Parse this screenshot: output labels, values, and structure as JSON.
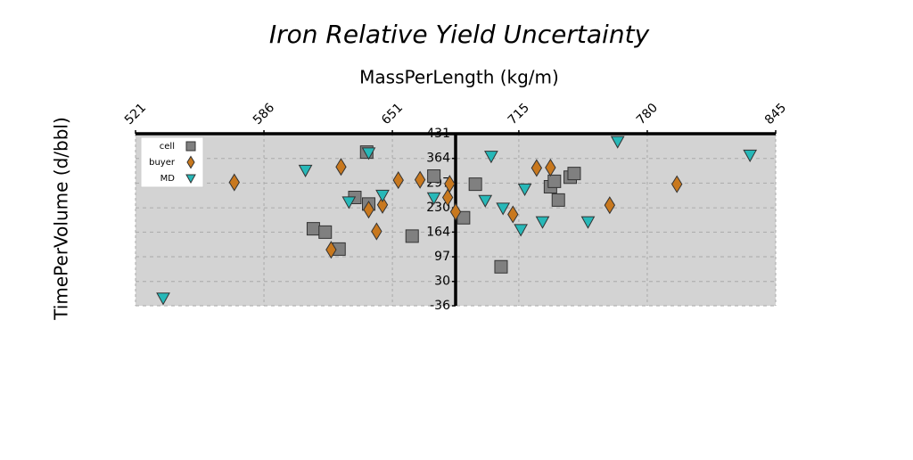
{
  "chart_data": {
    "type": "scatter",
    "title": "Iron Relative Yield Uncertainty",
    "xlabel": "MassPerLength (kg/m)",
    "ylabel": "TimePerVolume (d/bbl)",
    "xlim": [
      521,
      845
    ],
    "xticks": [
      521,
      586,
      651,
      715,
      780,
      845
    ],
    "ylim": [
      -36,
      431
    ],
    "yticks": [
      -36,
      30,
      97,
      164,
      230,
      297,
      364,
      431
    ],
    "y_axis_at": 683,
    "grid": true,
    "legend": "upper left",
    "series": [
      {
        "name": "cell",
        "color": "#808080",
        "marker": "square",
        "x": [
          638,
          672,
          632,
          639,
          611,
          617,
          624,
          661,
          687,
          693,
          706,
          731,
          733,
          741,
          743,
          735
        ],
        "values": [
          381,
          316,
          258,
          240,
          173,
          164,
          118,
          153,
          203,
          294,
          70,
          287,
          302,
          313,
          323,
          251
        ]
      },
      {
        "name": "buyer",
        "color": "#c8781e",
        "marker": "diamond",
        "x": [
          571,
          625,
          654,
          665,
          680,
          679,
          683,
          639,
          646,
          643,
          620,
          712,
          724,
          731,
          761,
          795
        ],
        "values": [
          299,
          341,
          305,
          306,
          295,
          258,
          219,
          225,
          238,
          166,
          116,
          212,
          338,
          339,
          237,
          294
        ]
      },
      {
        "name": "MD",
        "color": "#27b8b8",
        "marker": "triangle-down",
        "x": [
          535,
          607,
          639,
          629,
          646,
          672,
          701,
          698,
          707,
          718,
          716,
          727,
          750,
          765,
          832
        ],
        "values": [
          -15,
          332,
          379,
          246,
          264,
          257,
          370,
          250,
          229,
          281,
          171,
          192,
          192,
          410,
          373
        ]
      }
    ]
  }
}
